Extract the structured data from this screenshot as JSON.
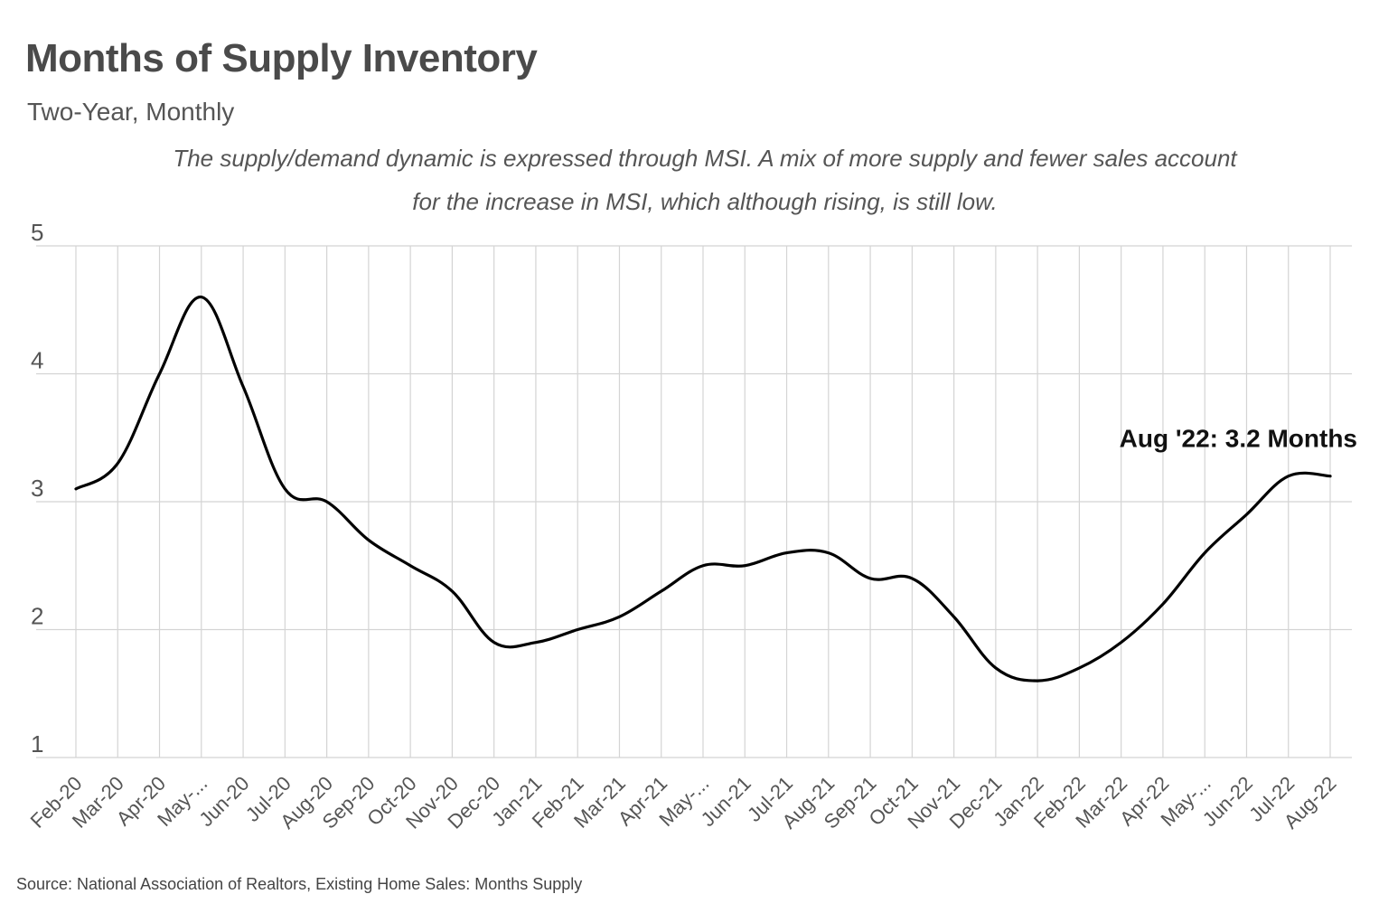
{
  "header": {
    "title": "Months of Supply Inventory",
    "subtitle": "Two-Year, Monthly",
    "note_line1": "The supply/demand dynamic is expressed through MSI. A mix of more supply and fewer sales account",
    "note_line2": "for the increase in MSI, which although rising, is still low."
  },
  "footer": {
    "source": "Source:  National Association of Realtors, Existing Home Sales: Months Supply"
  },
  "chart_data": {
    "type": "line",
    "title": "Months of Supply Inventory",
    "subtitle": "Two-Year, Monthly",
    "xlabel": "",
    "ylabel": "",
    "ylim": [
      1,
      5
    ],
    "yticks": [
      1,
      2,
      3,
      4,
      5
    ],
    "grid": true,
    "line_color": "#000000",
    "grid_color": "#d4d4d4",
    "categories": [
      "Feb-20",
      "Mar-20",
      "Apr-20",
      "May-...",
      "Jun-20",
      "Jul-20",
      "Aug-20",
      "Sep-20",
      "Oct-20",
      "Nov-20",
      "Dec-20",
      "Jan-21",
      "Feb-21",
      "Mar-21",
      "Apr-21",
      "May-...",
      "Jun-21",
      "Jul-21",
      "Aug-21",
      "Sep-21",
      "Oct-21",
      "Nov-21",
      "Dec-21",
      "Jan-22",
      "Feb-22",
      "Mar-22",
      "Apr-22",
      "May-...",
      "Jun-22",
      "Jul-22",
      "Aug-22"
    ],
    "series": [
      {
        "name": "Months Supply",
        "values": [
          3.1,
          3.3,
          4.0,
          4.6,
          3.9,
          3.1,
          3.0,
          2.7,
          2.5,
          2.3,
          1.9,
          1.9,
          2.0,
          2.1,
          2.3,
          2.5,
          2.5,
          2.6,
          2.6,
          2.4,
          2.4,
          2.1,
          1.7,
          1.6,
          1.7,
          1.9,
          2.2,
          2.6,
          2.9,
          3.2,
          3.2
        ]
      }
    ],
    "annotation": {
      "text": "Aug '22: 3.2 Months",
      "category": "Aug-22",
      "value": 3.2
    }
  }
}
